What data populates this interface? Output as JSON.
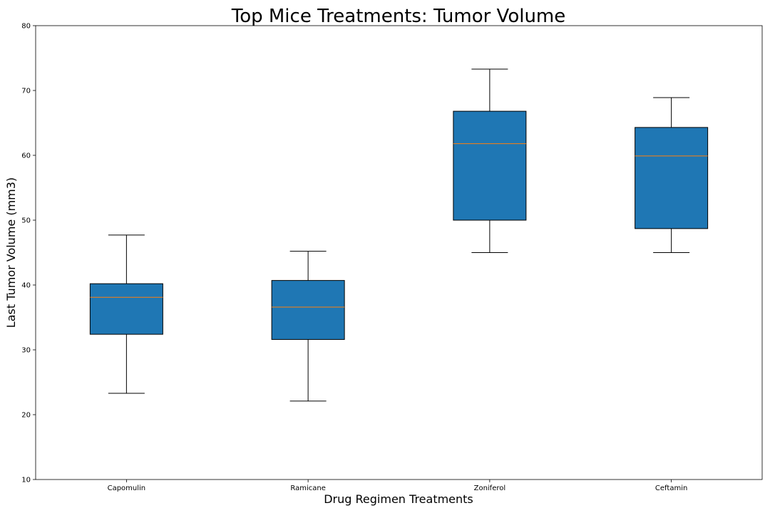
{
  "chart_data": {
    "type": "box",
    "title": "Top Mice Treatments: Tumor Volume",
    "xlabel": "Drug Regimen Treatments",
    "ylabel": "Last Tumor Volume (mm3)",
    "ylim": [
      10,
      80
    ],
    "yticks": [
      "10",
      "20",
      "30",
      "40",
      "50",
      "60",
      "70",
      "80"
    ],
    "categories": [
      "Capomulin",
      "Ramicane",
      "Zoniferol",
      "Ceftamin"
    ],
    "boxes": [
      {
        "category": "Capomulin",
        "whisker_low": 23.3,
        "q1": 32.4,
        "median": 38.1,
        "q3": 40.2,
        "whisker_high": 47.7
      },
      {
        "category": "Ramicane",
        "whisker_low": 22.1,
        "q1": 31.6,
        "median": 36.6,
        "q3": 40.7,
        "whisker_high": 45.2
      },
      {
        "category": "Zoniferol",
        "whisker_low": 45.0,
        "q1": 50.0,
        "median": 61.8,
        "q3": 66.8,
        "whisker_high": 73.3
      },
      {
        "category": "Ceftamin",
        "whisker_low": 45.0,
        "q1": 48.7,
        "median": 59.9,
        "q3": 64.3,
        "whisker_high": 68.9
      }
    ],
    "box_color": "#1f77b4",
    "median_color": "#ff7f0e",
    "grid": false,
    "legend": "none"
  }
}
